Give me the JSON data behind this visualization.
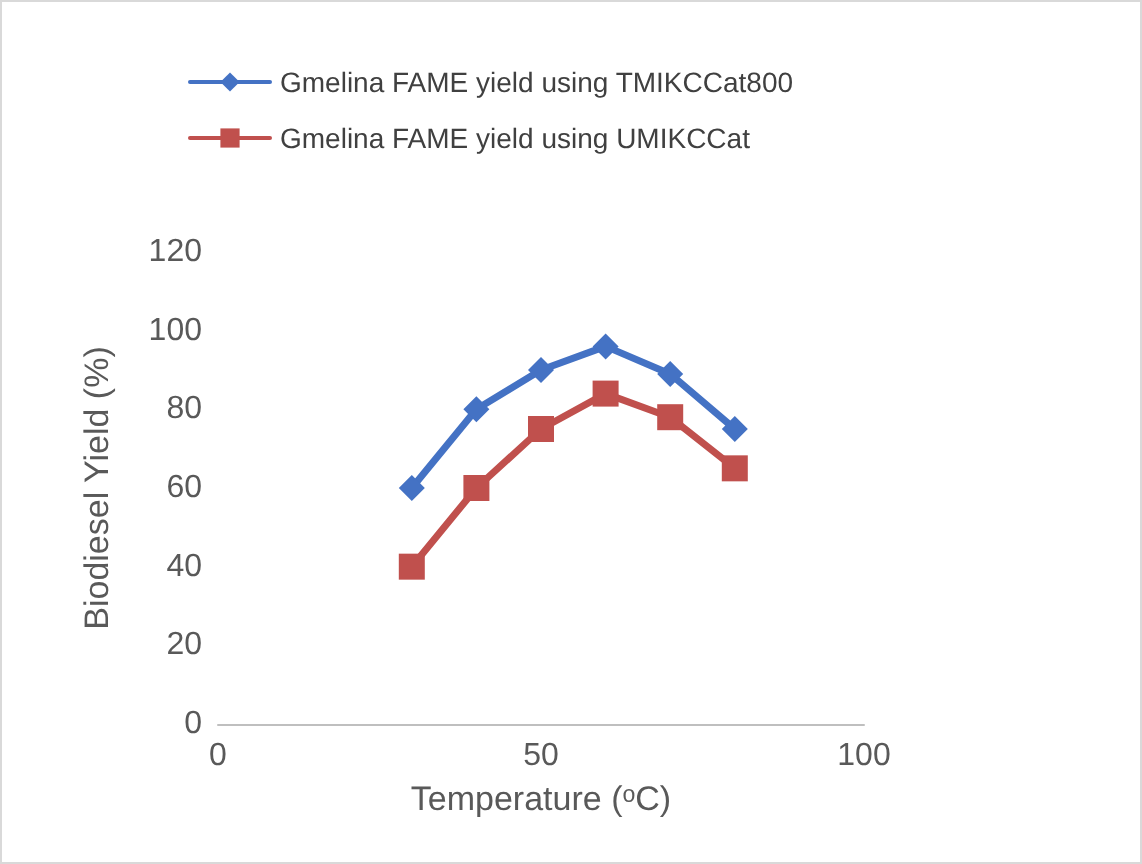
{
  "chart_data": {
    "type": "line",
    "xlabel": "Temperature (ᵒC)",
    "ylabel": "Biodiesel Yield (%)",
    "xlim": [
      0,
      100
    ],
    "xticks": [
      0,
      50,
      100
    ],
    "ylim": [
      0,
      120
    ],
    "yticks": [
      0,
      20,
      40,
      60,
      80,
      100,
      120
    ],
    "grid": false,
    "legend": "top",
    "line_style": "solid",
    "series": [
      {
        "name": "Gmelina FAME yield using TMIKCCat800",
        "color": "#4472c4",
        "marker": "diamond",
        "x": [
          30,
          40,
          50,
          60,
          70,
          80
        ],
        "values": [
          60,
          80,
          90,
          96,
          89,
          75
        ]
      },
      {
        "name": "Gmelina FAME yield using UMIKCCat",
        "color": "#c0504d",
        "marker": "square",
        "x": [
          30,
          40,
          50,
          60,
          70,
          80
        ],
        "values": [
          40,
          60,
          75,
          84,
          78,
          65
        ]
      }
    ]
  }
}
